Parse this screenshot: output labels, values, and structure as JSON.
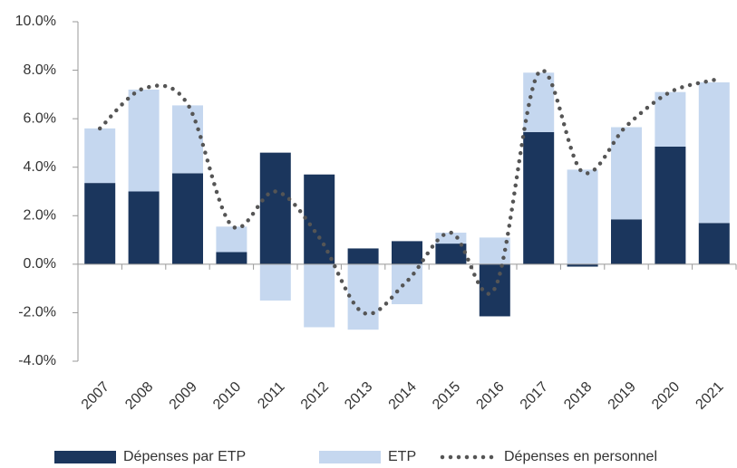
{
  "chart_data": {
    "type": "bar",
    "categories": [
      "2007",
      "2008",
      "2009",
      "2010",
      "2011",
      "2012",
      "2013",
      "2014",
      "2015",
      "2016",
      "2017",
      "2018",
      "2019",
      "2020",
      "2021"
    ],
    "series": [
      {
        "name": "Dépenses par ETP",
        "color": "#1b365d",
        "values": [
          3.35,
          3.0,
          3.75,
          0.5,
          4.6,
          3.7,
          0.65,
          0.95,
          0.85,
          -2.15,
          5.45,
          -0.1,
          1.85,
          4.85,
          1.7
        ]
      },
      {
        "name": "ETP",
        "color": "#c5d7ef",
        "values": [
          2.25,
          4.2,
          2.8,
          1.05,
          -1.5,
          -2.6,
          -2.7,
          -1.65,
          0.45,
          1.1,
          2.45,
          3.9,
          3.8,
          2.25,
          5.8
        ]
      },
      {
        "name": "Dépenses en personnel",
        "type": "line",
        "color": "#555555",
        "values": [
          5.6,
          7.25,
          6.6,
          1.6,
          3.0,
          1.1,
          -2.0,
          -0.7,
          1.3,
          -1.0,
          7.9,
          3.8,
          5.7,
          7.1,
          7.6
        ]
      }
    ],
    "stacked": true,
    "ylim": [
      -4,
      10
    ],
    "yticks": [
      {
        "value": -4,
        "label": "-4.0%"
      },
      {
        "value": -2,
        "label": "-2.0%"
      },
      {
        "value": 0,
        "label": "0.0%"
      },
      {
        "value": 2,
        "label": "2.0%"
      },
      {
        "value": 4,
        "label": "4.0%"
      },
      {
        "value": 6,
        "label": "6.0%"
      },
      {
        "value": 8,
        "label": "8.0%"
      },
      {
        "value": 10,
        "label": "10.0%"
      }
    ],
    "grid": false,
    "legend": "bottom"
  }
}
